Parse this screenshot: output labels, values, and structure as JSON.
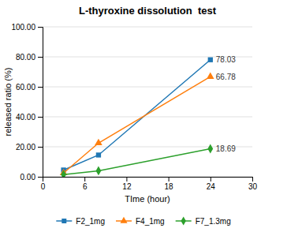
{
  "chart_data": {
    "type": "line",
    "title": "L-thyroxine dissolution  test",
    "xlabel": "TIme (hour)",
    "ylabel": "released ratio (%)",
    "x": [
      3,
      8,
      24
    ],
    "xlim": [
      0,
      30
    ],
    "ylim": [
      0,
      100
    ],
    "xticks": [
      0,
      6,
      12,
      18,
      24,
      30
    ],
    "yticks": [
      {
        "value": 0,
        "label": "0.00"
      },
      {
        "value": 20,
        "label": "20.00"
      },
      {
        "value": 40,
        "label": "40.00"
      },
      {
        "value": 60,
        "label": "60.00"
      },
      {
        "value": 80,
        "label": "80.00"
      },
      {
        "value": 100,
        "label": "100.00"
      }
    ],
    "series": [
      {
        "name": "F2_1mg",
        "values": [
          4.5,
          14.5,
          78.03
        ],
        "marker": "square"
      },
      {
        "name": "F4_1mg",
        "values": [
          2.5,
          22.5,
          66.78
        ],
        "marker": "triangle"
      },
      {
        "name": "F7_1.3mg",
        "values": [
          1.5,
          4.0,
          18.69
        ],
        "marker": "diamond"
      }
    ],
    "annotations": [
      {
        "text": "78.03",
        "x": 24,
        "y": 78.03
      },
      {
        "text": "66.78",
        "x": 24,
        "y": 66.78
      },
      {
        "text": "18.69",
        "x": 24,
        "y": 18.69
      }
    ],
    "grid": true,
    "legend": "bottom"
  }
}
